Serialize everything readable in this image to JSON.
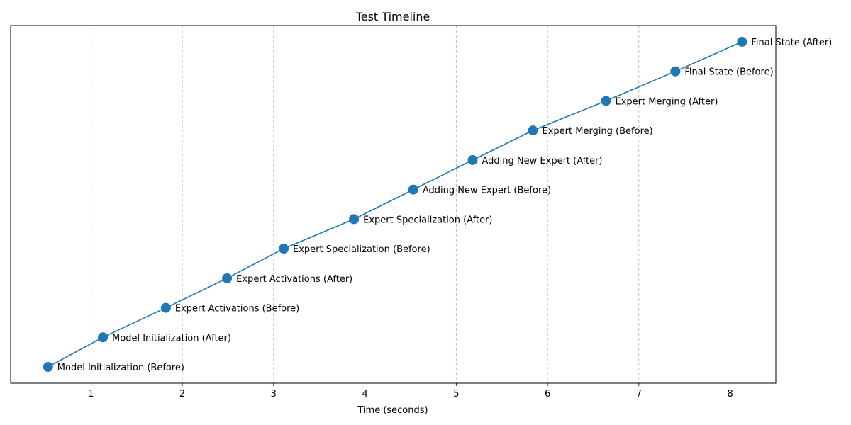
{
  "chart_data": {
    "type": "line",
    "title": "Test Timeline",
    "xlabel": "Time (seconds)",
    "ylabel": "",
    "xlim": [
      0.12,
      8.5
    ],
    "x_ticks": [
      1,
      2,
      3,
      4,
      5,
      6,
      7,
      8
    ],
    "grid": "vertical dashed",
    "y_ticks_visible": false,
    "colors": {
      "line": "#1f77b4",
      "marker": "#1f77b4",
      "grid": "#b0b0b0"
    },
    "points": [
      {
        "x": 0.53,
        "y": 0,
        "label": "Model Initialization (Before)"
      },
      {
        "x": 1.13,
        "y": 1,
        "label": "Model Initialization (After)"
      },
      {
        "x": 1.82,
        "y": 2,
        "label": "Expert Activations (Before)"
      },
      {
        "x": 2.49,
        "y": 3,
        "label": "Expert Activations (After)"
      },
      {
        "x": 3.11,
        "y": 4,
        "label": "Expert Specialization (Before)"
      },
      {
        "x": 3.88,
        "y": 5,
        "label": "Expert Specialization (After)"
      },
      {
        "x": 4.53,
        "y": 6,
        "label": "Adding New Expert (Before)"
      },
      {
        "x": 5.18,
        "y": 7,
        "label": "Adding New Expert (After)"
      },
      {
        "x": 5.84,
        "y": 8,
        "label": "Expert Merging (Before)"
      },
      {
        "x": 6.64,
        "y": 9,
        "label": "Expert Merging (After)"
      },
      {
        "x": 7.4,
        "y": 10,
        "label": "Final State (Before)"
      },
      {
        "x": 8.13,
        "y": 11,
        "label": "Final State (After)"
      }
    ],
    "ylim": [
      -0.55,
      11.55
    ]
  }
}
